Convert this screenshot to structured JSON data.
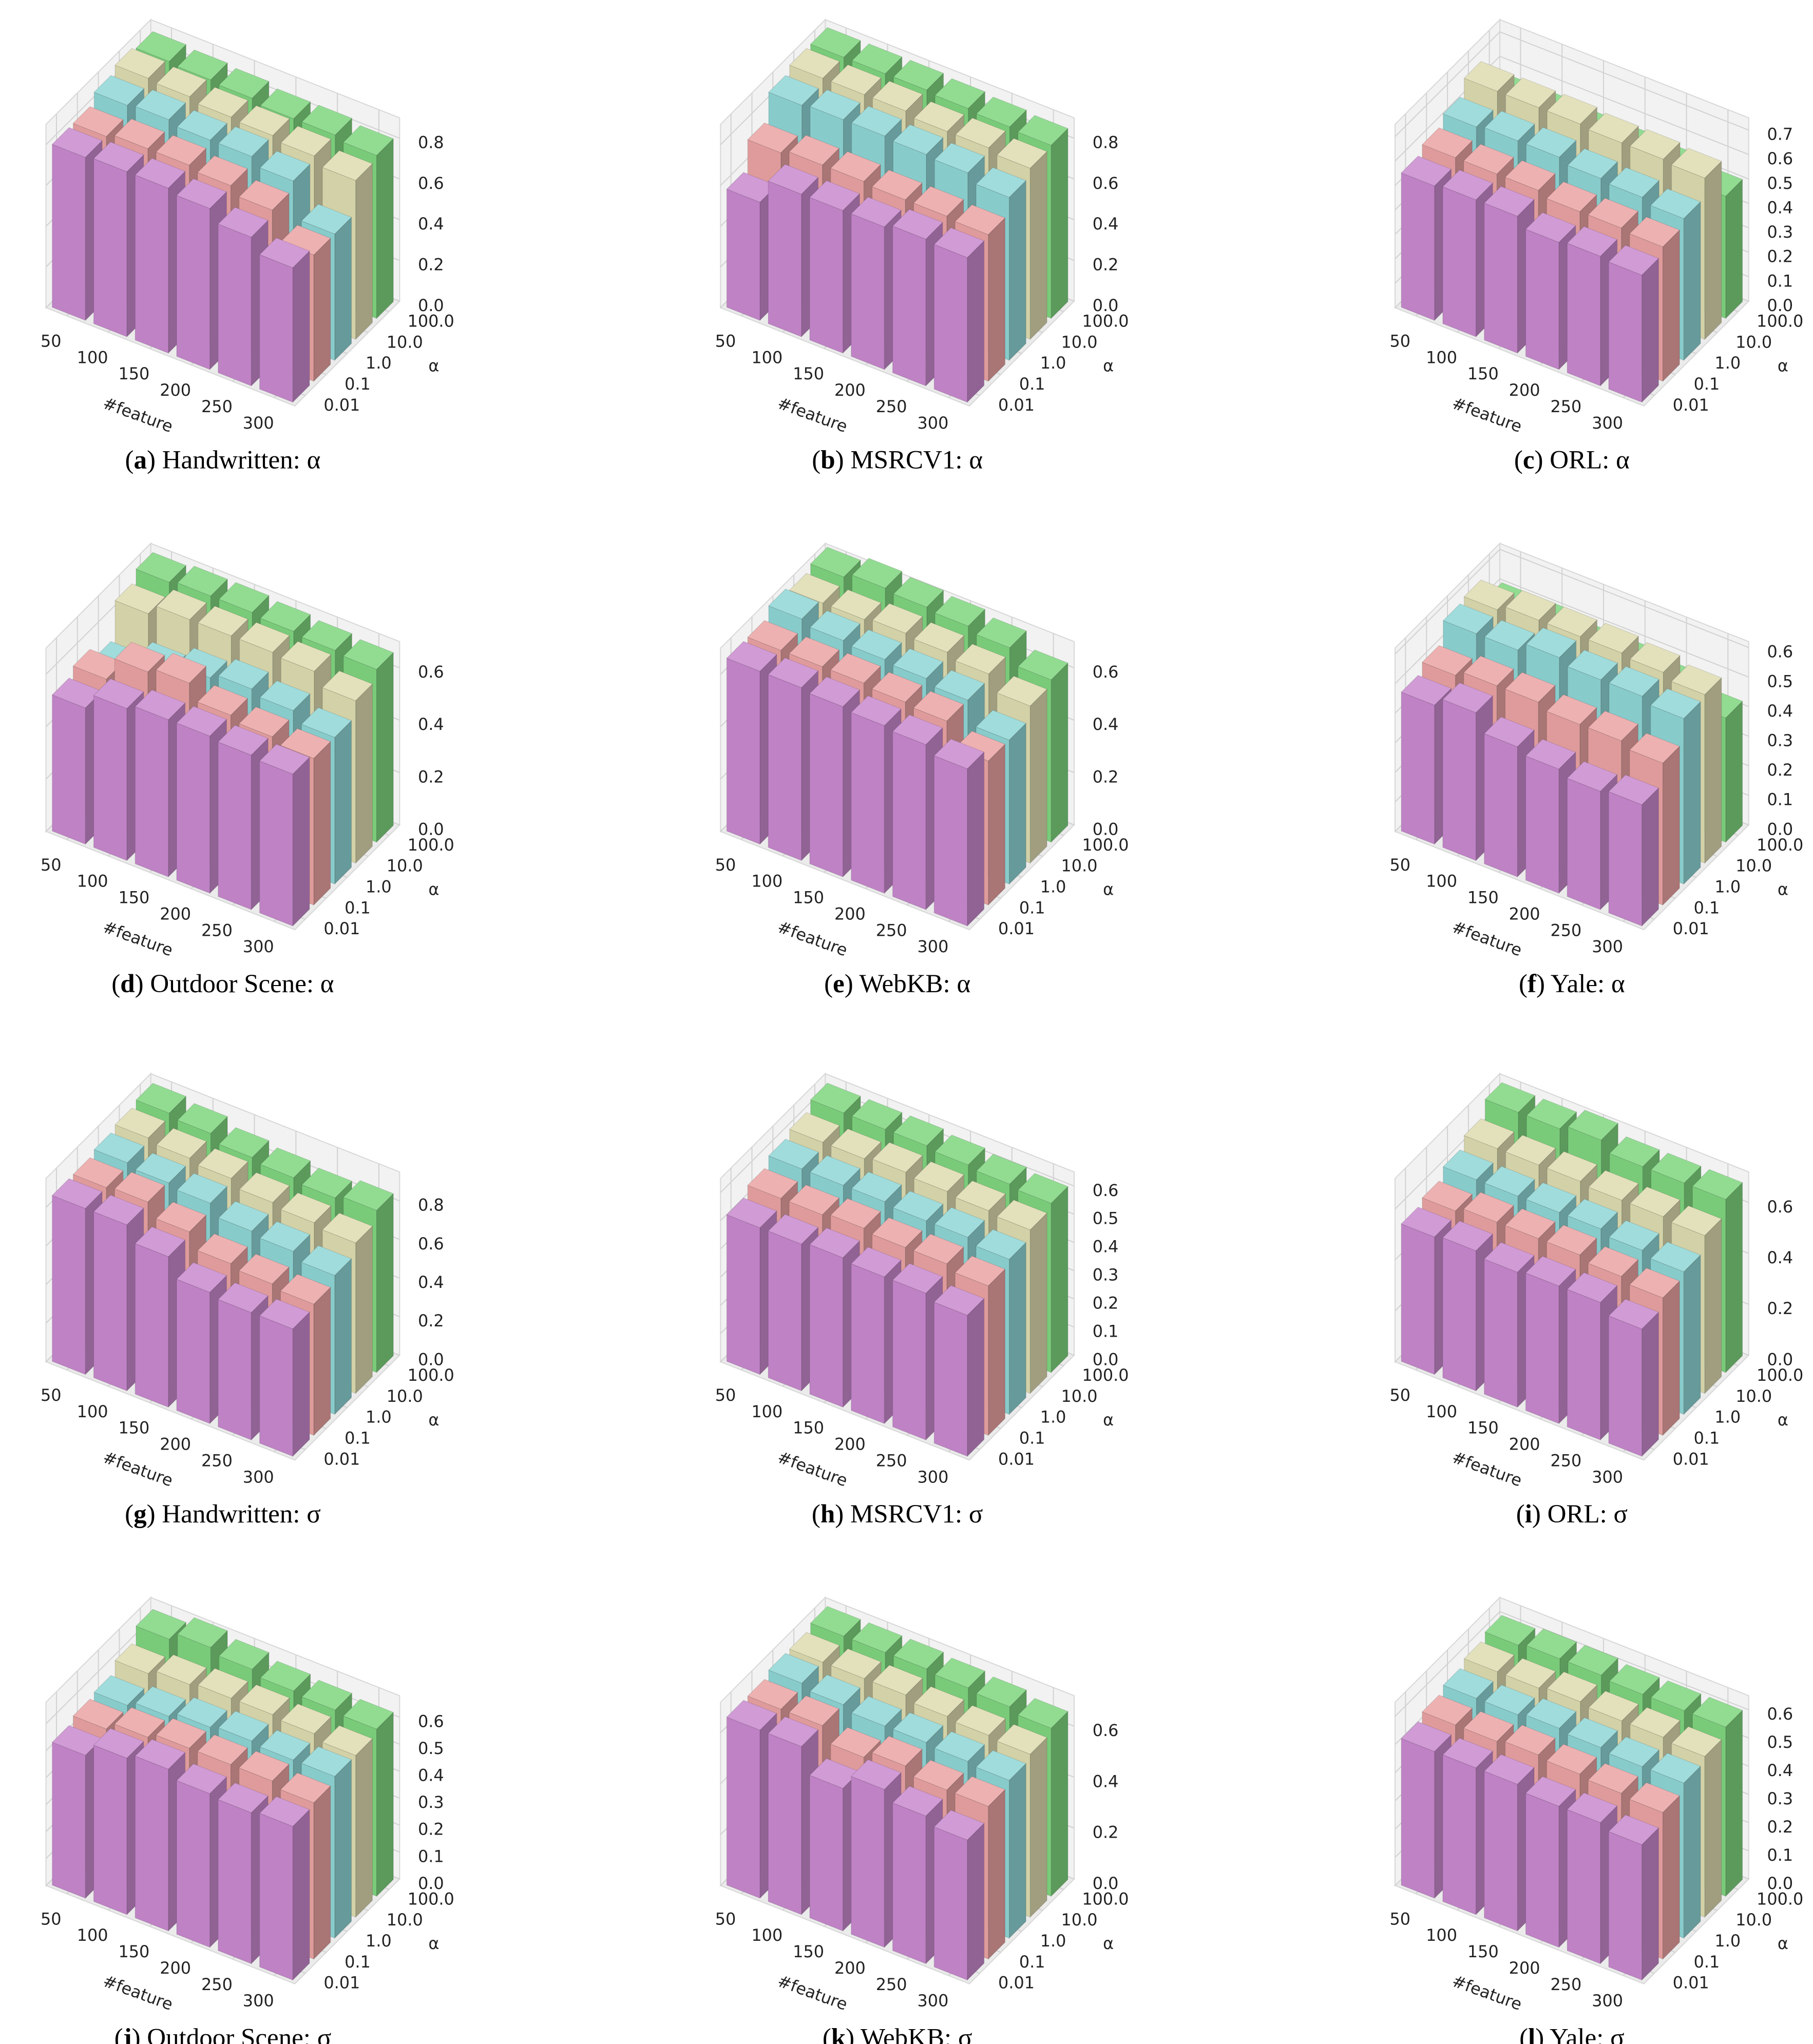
{
  "chart_data": [
    {
      "type": "bar3d",
      "caption_parts": [
        "(",
        "a",
        ") Handwritten: α"
      ],
      "categories": [
        "50",
        "100",
        "150",
        "200",
        "250",
        "300"
      ],
      "xlabel": "#feature",
      "ylabel": "α",
      "zlim": [
        0,
        0.9
      ],
      "zticks": [
        {
          "value": 0,
          "label": "0.0"
        },
        0.2,
        0.4,
        0.6,
        0.8
      ],
      "series": [
        {
          "name": "0.01",
          "color": "#c989cf",
          "values": [
            0.8,
            0.81,
            0.81,
            0.79,
            0.73,
            0.66
          ]
        },
        {
          "name": "0.1",
          "color": "#eba3a3",
          "values": [
            0.8,
            0.82,
            0.82,
            0.8,
            0.76,
            0.62
          ]
        },
        {
          "name": "1.0",
          "color": "#8fd6d6",
          "values": [
            0.85,
            0.86,
            0.84,
            0.84,
            0.8,
            0.62
          ]
        },
        {
          "name": "10.0",
          "color": "#dedcb0",
          "values": [
            0.88,
            0.87,
            0.85,
            0.84,
            0.82,
            0.78
          ]
        },
        {
          "name": "100.0",
          "color": "#7fd67f",
          "values": [
            0.86,
            0.85,
            0.84,
            0.82,
            0.82,
            0.8
          ]
        }
      ]
    },
    {
      "type": "bar3d",
      "caption_parts": [
        "(",
        "b",
        ") MSRCV1: α"
      ],
      "categories": [
        "50",
        "100",
        "150",
        "200",
        "250",
        "300"
      ],
      "xlabel": "#feature",
      "ylabel": "α",
      "zlim": [
        0,
        0.9
      ],
      "zticks": [
        {
          "value": 0,
          "label": "0.0"
        },
        0.2,
        0.4,
        0.6,
        0.8
      ],
      "series": [
        {
          "name": "0.01",
          "color": "#c989cf",
          "values": [
            0.58,
            0.7,
            0.7,
            0.7,
            0.72,
            0.71
          ]
        },
        {
          "name": "0.1",
          "color": "#eba3a3",
          "values": [
            0.72,
            0.74,
            0.74,
            0.73,
            0.73,
            0.72
          ]
        },
        {
          "name": "1.0",
          "color": "#8fd6d6",
          "values": [
            0.85,
            0.86,
            0.86,
            0.85,
            0.84,
            0.8
          ]
        },
        {
          "name": "10.0",
          "color": "#dedcb0",
          "values": [
            0.88,
            0.88,
            0.88,
            0.86,
            0.86,
            0.84
          ]
        },
        {
          "name": "100.0",
          "color": "#7fd67f",
          "values": [
            0.88,
            0.88,
            0.88,
            0.87,
            0.86,
            0.85
          ]
        }
      ]
    },
    {
      "type": "bar3d",
      "caption_parts": [
        "(",
        "c",
        ") ORL: α"
      ],
      "categories": [
        "50",
        "100",
        "150",
        "200",
        "250",
        "300"
      ],
      "xlabel": "#feature",
      "ylabel": "α",
      "zlim": [
        0,
        0.75
      ],
      "zticks": [
        {
          "value": 0,
          "label": "0.0"
        },
        0.1,
        0.2,
        0.3,
        0.4,
        0.5,
        0.6,
        0.7
      ],
      "series": [
        {
          "name": "0.01",
          "color": "#c989cf",
          "values": [
            0.55,
            0.56,
            0.56,
            0.52,
            0.53,
            0.52
          ]
        },
        {
          "name": "0.1",
          "color": "#eba3a3",
          "values": [
            0.58,
            0.58,
            0.58,
            0.56,
            0.56,
            0.55
          ]
        },
        {
          "name": "1.0",
          "color": "#8fd6d6",
          "values": [
            0.62,
            0.63,
            0.63,
            0.61,
            0.6,
            0.58
          ]
        },
        {
          "name": "10.0",
          "color": "#dedcb0",
          "values": [
            0.68,
            0.68,
            0.68,
            0.67,
            0.67,
            0.66
          ]
        },
        {
          "name": "100.0",
          "color": "#7fd67f",
          "values": [
            0.55,
            0.55,
            0.54,
            0.54,
            0.53,
            0.5
          ]
        }
      ]
    },
    {
      "type": "bar3d",
      "caption_parts": [
        "(",
        "d",
        ") Outdoor Scene: α"
      ],
      "categories": [
        "50",
        "100",
        "150",
        "200",
        "250",
        "300"
      ],
      "xlabel": "#feature",
      "ylabel": "α",
      "zlim": [
        0,
        0.7
      ],
      "zticks": [
        {
          "value": 0,
          "label": "0.0"
        },
        0.2,
        0.4,
        0.6
      ],
      "series": [
        {
          "name": "0.01",
          "color": "#c989cf",
          "values": [
            0.52,
            0.58,
            0.6,
            0.6,
            0.59,
            0.58
          ]
        },
        {
          "name": "0.1",
          "color": "#eba3a3",
          "values": [
            0.55,
            0.64,
            0.66,
            0.6,
            0.58,
            0.56
          ]
        },
        {
          "name": "1.0",
          "color": "#8fd6d6",
          "values": [
            0.5,
            0.56,
            0.6,
            0.62,
            0.6,
            0.56
          ]
        },
        {
          "name": "10.0",
          "color": "#dedcb0",
          "values": [
            0.64,
            0.68,
            0.68,
            0.68,
            0.67,
            0.62
          ]
        },
        {
          "name": "100.0",
          "color": "#7fd67f",
          "values": [
            0.68,
            0.69,
            0.69,
            0.68,
            0.67,
            0.66
          ]
        }
      ]
    },
    {
      "type": "bar3d",
      "caption_parts": [
        "(",
        "e",
        ") WebKB: α"
      ],
      "categories": [
        "50",
        "100",
        "150",
        "200",
        "250",
        "300"
      ],
      "xlabel": "#feature",
      "ylabel": "α",
      "zlim": [
        0,
        0.7
      ],
      "zticks": [
        {
          "value": 0,
          "label": "0.0"
        },
        0.2,
        0.4,
        0.6
      ],
      "series": [
        {
          "name": "0.01",
          "color": "#c989cf",
          "values": [
            0.66,
            0.66,
            0.65,
            0.64,
            0.63,
            0.6
          ]
        },
        {
          "name": "0.1",
          "color": "#eba3a3",
          "values": [
            0.66,
            0.66,
            0.66,
            0.65,
            0.64,
            0.55
          ]
        },
        {
          "name": "1.0",
          "color": "#8fd6d6",
          "values": [
            0.7,
            0.68,
            0.67,
            0.66,
            0.64,
            0.55
          ]
        },
        {
          "name": "10.0",
          "color": "#dedcb0",
          "values": [
            0.68,
            0.68,
            0.69,
            0.68,
            0.66,
            0.6
          ]
        },
        {
          "name": "100.0",
          "color": "#7fd67f",
          "values": [
            0.7,
            0.72,
            0.71,
            0.7,
            0.68,
            0.62
          ]
        }
      ]
    },
    {
      "type": "bar3d",
      "caption_parts": [
        "(",
        "f",
        ") Yale: α"
      ],
      "categories": [
        "50",
        "100",
        "150",
        "200",
        "250",
        "300"
      ],
      "xlabel": "#feature",
      "ylabel": "α",
      "zlim": [
        0,
        0.62
      ],
      "zticks": [
        {
          "value": 0,
          "label": "0.0"
        },
        0.1,
        0.2,
        0.3,
        0.4,
        0.5,
        0.6
      ],
      "series": [
        {
          "name": "0.01",
          "color": "#c989cf",
          "values": [
            0.47,
            0.5,
            0.44,
            0.42,
            0.4,
            0.41
          ]
        },
        {
          "name": "0.1",
          "color": "#eba3a3",
          "values": [
            0.5,
            0.52,
            0.52,
            0.5,
            0.5,
            0.48
          ]
        },
        {
          "name": "1.0",
          "color": "#8fd6d6",
          "values": [
            0.57,
            0.57,
            0.6,
            0.58,
            0.58,
            0.56
          ]
        },
        {
          "name": "10.0",
          "color": "#dedcb0",
          "values": [
            0.58,
            0.6,
            0.6,
            0.6,
            0.59,
            0.57
          ]
        },
        {
          "name": "100.0",
          "color": "#7fd67f",
          "values": [
            0.5,
            0.5,
            0.48,
            0.48,
            0.46,
            0.42
          ]
        }
      ]
    },
    {
      "type": "bar3d",
      "caption_parts": [
        "(",
        "g",
        ") Handwritten: σ"
      ],
      "categories": [
        "50",
        "100",
        "150",
        "200",
        "250",
        "300"
      ],
      "xlabel": "#feature",
      "ylabel": "α",
      "zlim": [
        0,
        0.95
      ],
      "zticks": [
        {
          "value": 0,
          "label": "0.0"
        },
        0.2,
        0.4,
        0.6,
        0.8
      ],
      "series": [
        {
          "name": "0.01",
          "color": "#c989cf",
          "values": [
            0.86,
            0.86,
            0.78,
            0.68,
            0.66,
            0.66
          ]
        },
        {
          "name": "0.1",
          "color": "#eba3a3",
          "values": [
            0.86,
            0.87,
            0.8,
            0.72,
            0.7,
            0.68
          ]
        },
        {
          "name": "1.0",
          "color": "#8fd6d6",
          "values": [
            0.88,
            0.86,
            0.84,
            0.78,
            0.76,
            0.72
          ]
        },
        {
          "name": "10.0",
          "color": "#dedcb0",
          "values": [
            0.9,
            0.88,
            0.86,
            0.82,
            0.8,
            0.78
          ]
        },
        {
          "name": "100.0",
          "color": "#7fd67f",
          "values": [
            0.92,
            0.9,
            0.86,
            0.84,
            0.82,
            0.84
          ]
        }
      ]
    },
    {
      "type": "bar3d",
      "caption_parts": [
        "(",
        "h",
        ") MSRCV1: σ"
      ],
      "categories": [
        "50",
        "100",
        "150",
        "200",
        "250",
        "300"
      ],
      "xlabel": "#feature",
      "ylabel": "α",
      "zlim": [
        0,
        0.65
      ],
      "zticks": [
        {
          "value": 0,
          "label": "0.0"
        },
        0.1,
        0.2,
        0.3,
        0.4,
        0.5,
        0.6
      ],
      "series": [
        {
          "name": "0.01",
          "color": "#c989cf",
          "values": [
            0.52,
            0.52,
            0.53,
            0.52,
            0.52,
            0.5
          ]
        },
        {
          "name": "0.1",
          "color": "#eba3a3",
          "values": [
            0.55,
            0.55,
            0.56,
            0.55,
            0.55,
            0.53
          ]
        },
        {
          "name": "1.0",
          "color": "#8fd6d6",
          "values": [
            0.58,
            0.58,
            0.58,
            0.57,
            0.57,
            0.55
          ]
        },
        {
          "name": "10.0",
          "color": "#dedcb0",
          "values": [
            0.6,
            0.6,
            0.61,
            0.6,
            0.59,
            0.58
          ]
        },
        {
          "name": "100.0",
          "color": "#7fd67f",
          "values": [
            0.63,
            0.63,
            0.63,
            0.62,
            0.61,
            0.6
          ]
        }
      ]
    },
    {
      "type": "bar3d",
      "caption_parts": [
        "(",
        "i",
        ") ORL: σ"
      ],
      "categories": [
        "50",
        "100",
        "150",
        "200",
        "250",
        "300"
      ],
      "xlabel": "#feature",
      "ylabel": "α",
      "zlim": [
        0,
        0.72
      ],
      "zticks": [
        {
          "value": 0,
          "label": "0.0"
        },
        0.2,
        0.4,
        0.6
      ],
      "series": [
        {
          "name": "0.01",
          "color": "#c989cf",
          "values": [
            0.54,
            0.55,
            0.53,
            0.54,
            0.54,
            0.5
          ]
        },
        {
          "name": "0.1",
          "color": "#eba3a3",
          "values": [
            0.56,
            0.58,
            0.58,
            0.58,
            0.56,
            0.54
          ]
        },
        {
          "name": "1.0",
          "color": "#8fd6d6",
          "values": [
            0.6,
            0.6,
            0.6,
            0.6,
            0.58,
            0.56
          ]
        },
        {
          "name": "10.0",
          "color": "#dedcb0",
          "values": [
            0.64,
            0.64,
            0.64,
            0.63,
            0.63,
            0.62
          ]
        },
        {
          "name": "100.0",
          "color": "#7fd67f",
          "values": [
            0.7,
            0.7,
            0.72,
            0.68,
            0.68,
            0.68
          ]
        }
      ]
    },
    {
      "type": "bar3d",
      "caption_parts": [
        "(",
        "j",
        ") Outdoor Scene: σ"
      ],
      "categories": [
        "50",
        "100",
        "150",
        "200",
        "250",
        "300"
      ],
      "xlabel": "#feature",
      "ylabel": "α",
      "zlim": [
        0,
        0.68
      ],
      "zticks": [
        {
          "value": 0,
          "label": "0.0"
        },
        0.1,
        0.2,
        0.3,
        0.4,
        0.5,
        0.6
      ],
      "series": [
        {
          "name": "0.01",
          "color": "#c989cf",
          "values": [
            0.53,
            0.58,
            0.6,
            0.57,
            0.56,
            0.57
          ]
        },
        {
          "name": "0.1",
          "color": "#eba3a3",
          "values": [
            0.55,
            0.58,
            0.6,
            0.6,
            0.6,
            0.58
          ]
        },
        {
          "name": "1.0",
          "color": "#8fd6d6",
          "values": [
            0.56,
            0.58,
            0.6,
            0.61,
            0.6,
            0.6
          ]
        },
        {
          "name": "10.0",
          "color": "#dedcb0",
          "values": [
            0.6,
            0.62,
            0.63,
            0.63,
            0.62,
            0.6
          ]
        },
        {
          "name": "100.0",
          "color": "#7fd67f",
          "values": [
            0.65,
            0.68,
            0.66,
            0.64,
            0.63,
            0.62
          ]
        }
      ]
    },
    {
      "type": "bar3d",
      "caption_parts": [
        "(",
        "k",
        ") WebKB: σ"
      ],
      "categories": [
        "50",
        "100",
        "150",
        "200",
        "250",
        "300"
      ],
      "xlabel": "#feature",
      "ylabel": "α",
      "zlim": [
        0,
        0.72
      ],
      "zticks": [
        {
          "value": 0,
          "label": "0.0"
        },
        0.2,
        0.4,
        0.6
      ],
      "series": [
        {
          "name": "0.01",
          "color": "#c989cf",
          "values": [
            0.66,
            0.66,
            0.56,
            0.62,
            0.58,
            0.55
          ]
        },
        {
          "name": "0.1",
          "color": "#eba3a3",
          "values": [
            0.66,
            0.66,
            0.6,
            0.63,
            0.6,
            0.6
          ]
        },
        {
          "name": "1.0",
          "color": "#8fd6d6",
          "values": [
            0.68,
            0.66,
            0.64,
            0.64,
            0.63,
            0.62
          ]
        },
        {
          "name": "10.0",
          "color": "#dedcb0",
          "values": [
            0.68,
            0.68,
            0.68,
            0.66,
            0.65,
            0.64
          ]
        },
        {
          "name": "100.0",
          "color": "#7fd67f",
          "values": [
            0.7,
            0.7,
            0.7,
            0.69,
            0.68,
            0.66
          ]
        }
      ]
    },
    {
      "type": "bar3d",
      "caption_parts": [
        "(",
        "l",
        ") Yale: σ"
      ],
      "categories": [
        "50",
        "100",
        "150",
        "200",
        "250",
        "300"
      ],
      "xlabel": "#feature",
      "ylabel": "α",
      "zlim": [
        0,
        0.65
      ],
      "zticks": [
        {
          "value": 0,
          "label": "0.0"
        },
        0.1,
        0.2,
        0.3,
        0.4,
        0.5,
        0.6
      ],
      "series": [
        {
          "name": "0.01",
          "color": "#c989cf",
          "values": [
            0.52,
            0.52,
            0.52,
            0.5,
            0.5,
            0.48
          ]
        },
        {
          "name": "0.1",
          "color": "#eba3a3",
          "values": [
            0.54,
            0.54,
            0.55,
            0.54,
            0.53,
            0.52
          ]
        },
        {
          "name": "1.0",
          "color": "#8fd6d6",
          "values": [
            0.56,
            0.56,
            0.57,
            0.56,
            0.55,
            0.55
          ]
        },
        {
          "name": "10.0",
          "color": "#dedcb0",
          "values": [
            0.58,
            0.58,
            0.59,
            0.58,
            0.58,
            0.57
          ]
        },
        {
          "name": "100.0",
          "color": "#7fd67f",
          "values": [
            0.6,
            0.61,
            0.61,
            0.6,
            0.6,
            0.6
          ]
        }
      ]
    }
  ]
}
